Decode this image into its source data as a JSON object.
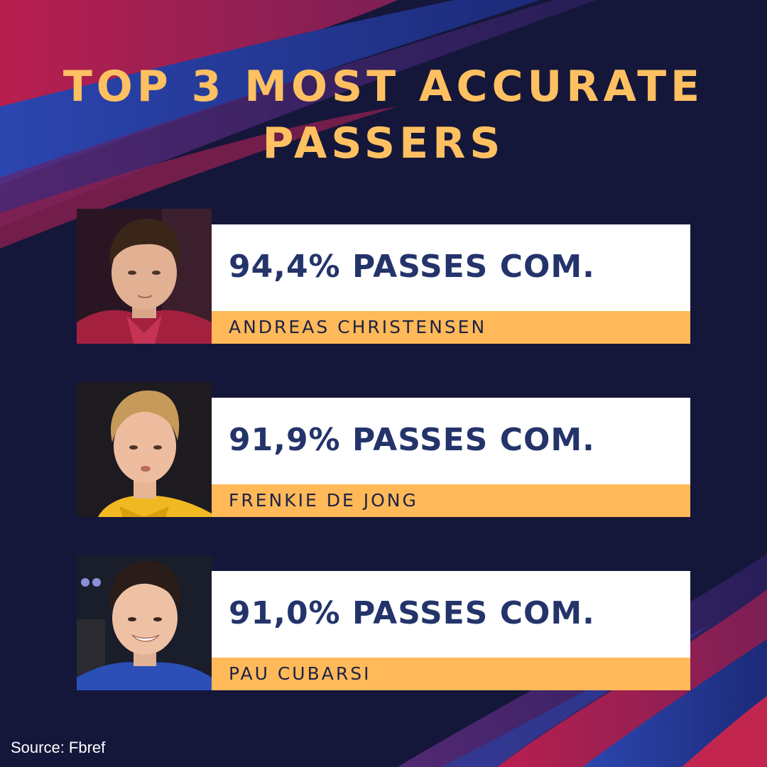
{
  "title": {
    "line1": "TOP 3 MOST ACCURATE",
    "line2": "PASSERS"
  },
  "players": [
    {
      "stat": "94,4% PASSES COM.",
      "name": "ANDREAS CHRISTENSEN"
    },
    {
      "stat": "91,9% PASSES COM.",
      "name": "FRENKIE DE JONG"
    },
    {
      "stat": "91,0% PASSES COM.",
      "name": "PAU CUBARSI"
    }
  ],
  "source": "Source: Fbref",
  "colors": {
    "background": "#15173a",
    "title": "#ffc061",
    "stat_box": "#ffffff",
    "stat_text": "#24346b",
    "name_bar": "#ffb958",
    "name_text": "#1d2246",
    "stripe_red": "#c2264f",
    "stripe_blue": "#2a3f9e"
  }
}
